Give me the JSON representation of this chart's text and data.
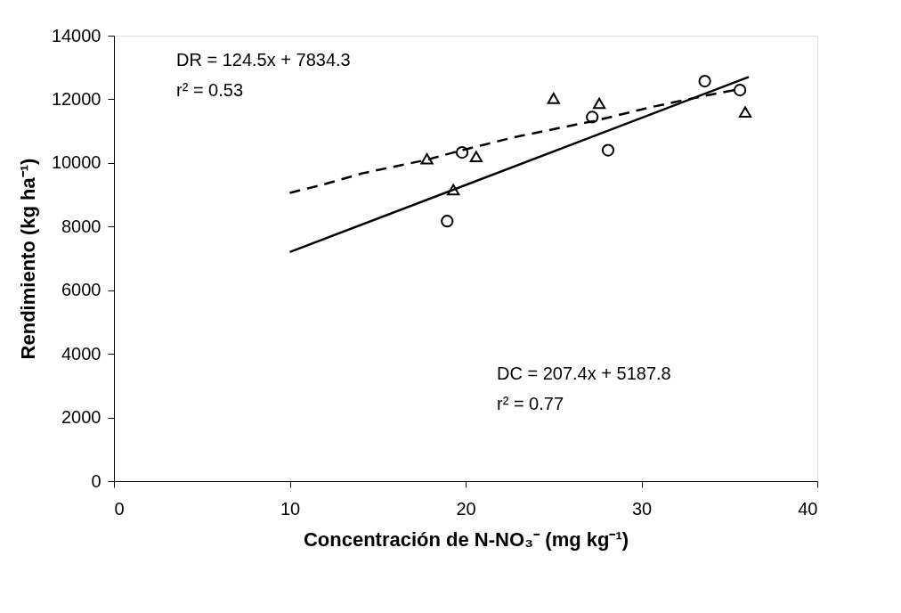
{
  "chart_data": {
    "type": "scatter",
    "xlabel": "Concentración de N-NO₃⁻ (mg kg⁻¹)",
    "ylabel": "Rendimiento (kg ha⁻¹)",
    "xlim": [
      0,
      40
    ],
    "xticks": [
      0,
      10,
      20,
      30,
      40
    ],
    "ylim": [
      0,
      14000
    ],
    "yticks": [
      0,
      2000,
      4000,
      6000,
      8000,
      10000,
      12000,
      14000
    ],
    "grid": false,
    "series": [
      {
        "marker": "circle",
        "color": "#000000",
        "x": [
          18.95,
          19.8,
          27.2,
          28.1,
          33.6,
          35.6
        ],
        "values": [
          8170,
          10330,
          11440,
          10400,
          12570,
          12290
        ]
      },
      {
        "marker": "triangle",
        "color": "#000000",
        "x": [
          17.8,
          19.3,
          20.6,
          25.0,
          27.6,
          35.9
        ],
        "values": [
          10130,
          9160,
          10200,
          12030,
          11870,
          11600
        ]
      },
      {
        "type": "line",
        "line_style": "solid",
        "color": "#000000",
        "x": [
          10,
          36.1
        ],
        "values": [
          7200,
          12700
        ]
      },
      {
        "type": "line",
        "line_style": "dashed",
        "color": "#000000",
        "x": [
          10,
          11.9,
          14.1,
          17.8,
          19.8,
          22.7,
          27.4,
          30.6,
          33.6,
          35.6
        ],
        "values": [
          9060,
          9320,
          9670,
          10100,
          10400,
          10800,
          11330,
          11760,
          12110,
          12320
        ]
      }
    ],
    "annotations": [
      "DR = 124.5x + 7834.3",
      "r² = 0.53",
      "DC = 207.4x + 5187.8",
      "r² = 0.77"
    ]
  }
}
